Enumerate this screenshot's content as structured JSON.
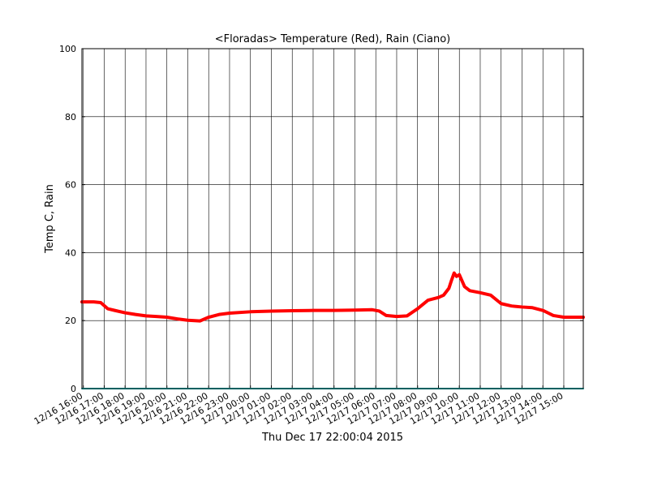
{
  "chart_data": {
    "type": "line",
    "title": "<Floradas> Temperature (Red), Rain (Ciano)",
    "xlabel": "Thu Dec 17 22:00:04 2015",
    "ylabel": "Temp C, Rain",
    "ylim": [
      0,
      100
    ],
    "yticks": [
      0,
      20,
      40,
      60,
      80,
      100
    ],
    "xlim": [
      "12/16 15:56",
      "12/17 15:56"
    ],
    "xticks": [
      "12/16 16:00",
      "12/16 17:00",
      "12/16 18:00",
      "12/16 19:00",
      "12/16 20:00",
      "12/16 21:00",
      "12/16 22:00",
      "12/16 23:00",
      "12/17 00:00",
      "12/17 01:00",
      "12/17 02:00",
      "12/17 03:00",
      "12/17 04:00",
      "12/17 05:00",
      "12/17 06:00",
      "12/17 07:00",
      "12/17 08:00",
      "12/17 09:00",
      "12/17 10:00",
      "12/17 11:00",
      "12/17 12:00",
      "12/17 13:00",
      "12/17 14:00",
      "12/17 15:00"
    ],
    "grid": true,
    "colors": {
      "temperature": "#ff0000",
      "rain": "#00bfbf",
      "grid": "#000000"
    },
    "series": [
      {
        "color": "#ff0000",
        "x": [
          "12/16 15:56",
          "12/16 16:30",
          "12/16 16:50",
          "12/16 17:10",
          "12/16 17:30",
          "12/16 18:00",
          "12/16 18:30",
          "12/16 19:00",
          "12/16 19:30",
          "12/16 20:00",
          "12/16 20:30",
          "12/16 21:00",
          "12/16 21:35",
          "12/16 22:00",
          "12/16 22:30",
          "12/16 23:00",
          "12/17 00:00",
          "12/17 01:00",
          "12/17 02:00",
          "12/17 03:00",
          "12/17 04:00",
          "12/17 05:00",
          "12/17 05:50",
          "12/17 06:10",
          "12/17 06:30",
          "12/17 07:00",
          "12/17 07:30",
          "12/17 08:00",
          "12/17 08:30",
          "12/17 09:00",
          "12/17 09:15",
          "12/17 09:30",
          "12/17 09:38",
          "12/17 09:45",
          "12/17 09:52",
          "12/17 10:00",
          "12/17 10:15",
          "12/17 10:30",
          "12/17 11:00",
          "12/17 11:30",
          "12/17 12:00",
          "12/17 12:30",
          "12/17 13:00",
          "12/17 13:30",
          "12/17 14:00",
          "12/17 14:30",
          "12/17 15:00",
          "12/17 15:30",
          "12/17 15:56"
        ],
        "y": [
          25.5,
          25.5,
          25.3,
          23.5,
          23.0,
          22.3,
          21.8,
          21.4,
          21.2,
          21.0,
          20.5,
          20.1,
          19.9,
          21.0,
          21.8,
          22.2,
          22.6,
          22.8,
          22.9,
          23.0,
          23.0,
          23.1,
          23.2,
          22.8,
          21.5,
          21.2,
          21.4,
          23.5,
          26.0,
          26.8,
          27.5,
          29.5,
          32.0,
          34.0,
          33.0,
          33.5,
          30.0,
          28.8,
          28.2,
          27.5,
          25.0,
          24.3,
          24.0,
          23.8,
          23.0,
          21.5,
          21.0,
          21.0,
          21.0
        ]
      },
      {
        "color": "#00bfbf",
        "x": [
          "12/16 15:56",
          "12/17 15:56"
        ],
        "y": [
          0,
          0
        ]
      }
    ]
  }
}
